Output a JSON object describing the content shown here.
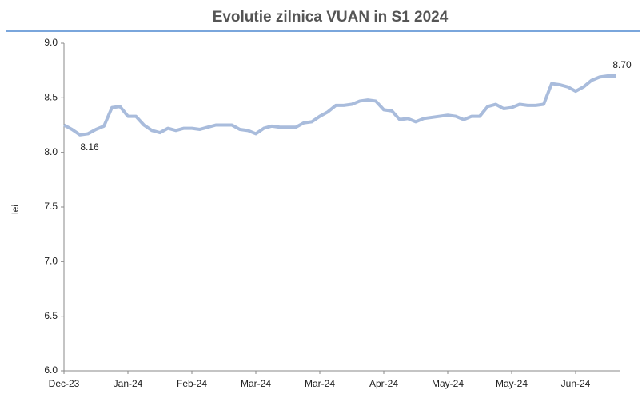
{
  "chart_data": {
    "type": "line",
    "title": "Evolutie zilnica VUAN in S1 2024",
    "y_label": "lei",
    "categories": [
      "Dec-23",
      null,
      null,
      null,
      null,
      null,
      null,
      null,
      "Jan-24",
      null,
      null,
      null,
      null,
      null,
      null,
      null,
      "Feb-24",
      null,
      null,
      null,
      null,
      null,
      null,
      null,
      "Mar-24",
      null,
      null,
      null,
      null,
      null,
      null,
      null,
      "Mar-24",
      null,
      null,
      null,
      null,
      null,
      null,
      null,
      "Apr-24",
      null,
      null,
      null,
      null,
      null,
      null,
      null,
      "May-24",
      null,
      null,
      null,
      null,
      null,
      null,
      null,
      "May-24",
      null,
      null,
      null,
      null,
      null,
      null,
      null,
      "Jun-24",
      null,
      null,
      null,
      null,
      null
    ],
    "series": [
      {
        "name": "VUAN",
        "color": "#a9bcdc",
        "values": [
          8.25,
          8.21,
          8.16,
          8.17,
          8.21,
          8.24,
          8.41,
          8.42,
          8.33,
          8.33,
          8.25,
          8.2,
          8.18,
          8.22,
          8.2,
          8.22,
          8.22,
          8.21,
          8.23,
          8.25,
          8.25,
          8.25,
          8.21,
          8.2,
          8.17,
          8.22,
          8.24,
          8.23,
          8.23,
          8.23,
          8.27,
          8.28,
          8.33,
          8.37,
          8.43,
          8.43,
          8.44,
          8.47,
          8.48,
          8.47,
          8.39,
          8.38,
          8.3,
          8.31,
          8.28,
          8.31,
          8.32,
          8.33,
          8.34,
          8.33,
          8.3,
          8.33,
          8.33,
          8.42,
          8.44,
          8.4,
          8.41,
          8.44,
          8.43,
          8.43,
          8.44,
          8.63,
          8.62,
          8.6,
          8.56,
          8.6,
          8.66,
          8.69,
          8.7,
          8.7
        ],
        "value_labels": [
          null,
          null,
          "8.16",
          null,
          null,
          null,
          null,
          null,
          null,
          null,
          null,
          null,
          null,
          null,
          null,
          null,
          null,
          null,
          null,
          null,
          null,
          null,
          null,
          null,
          null,
          null,
          null,
          null,
          null,
          null,
          null,
          null,
          null,
          null,
          null,
          null,
          null,
          null,
          null,
          null,
          null,
          null,
          null,
          null,
          null,
          null,
          null,
          null,
          null,
          null,
          null,
          null,
          null,
          null,
          null,
          null,
          null,
          null,
          null,
          null,
          null,
          null,
          null,
          null,
          null,
          null,
          null,
          null,
          null,
          "8.70"
        ]
      }
    ],
    "ylim": [
      6.0,
      9.0
    ],
    "yticks": [
      {
        "value": 6.0,
        "label": "6.0"
      },
      6.5,
      {
        "value": 7.0,
        "label": "7.0"
      },
      7.5,
      {
        "value": 8.0,
        "label": "8.0"
      },
      8.5,
      {
        "value": 9.0,
        "label": "9.0"
      }
    ],
    "grid": false
  }
}
